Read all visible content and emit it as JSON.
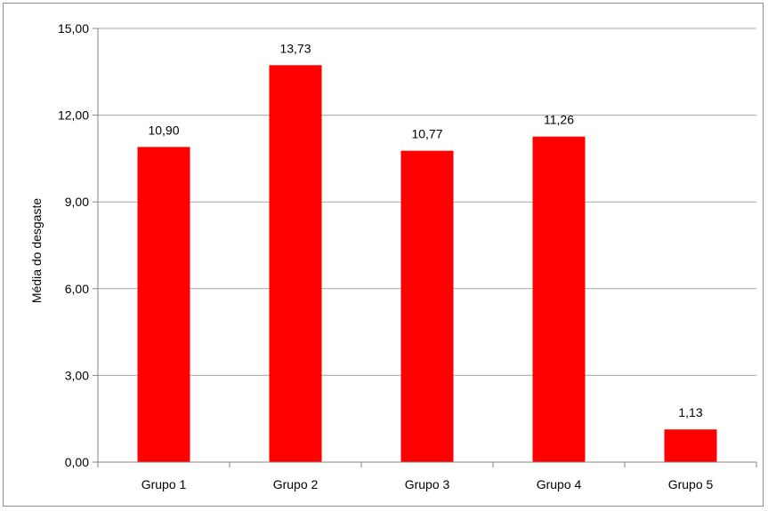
{
  "chart_data": {
    "type": "bar",
    "title": "",
    "xlabel": "",
    "ylabel": "Média do desgaste",
    "categories": [
      "Grupo 1",
      "Grupo 2",
      "Grupo 3",
      "Grupo 4",
      "Grupo 5"
    ],
    "values": [
      10.9,
      13.73,
      10.77,
      11.26,
      1.13
    ],
    "value_labels": [
      "10,90",
      "13,73",
      "10,77",
      "11,26",
      "1,13"
    ],
    "ylim": [
      0,
      15
    ],
    "yticks": [
      0,
      3,
      6,
      9,
      12,
      15
    ],
    "ytick_labels": [
      "0,00",
      "3,00",
      "6,00",
      "9,00",
      "12,00",
      "15,00"
    ],
    "grid": true,
    "legend": "none",
    "bar_color": "#ff0000",
    "grid_color": "#a6a6a6"
  }
}
